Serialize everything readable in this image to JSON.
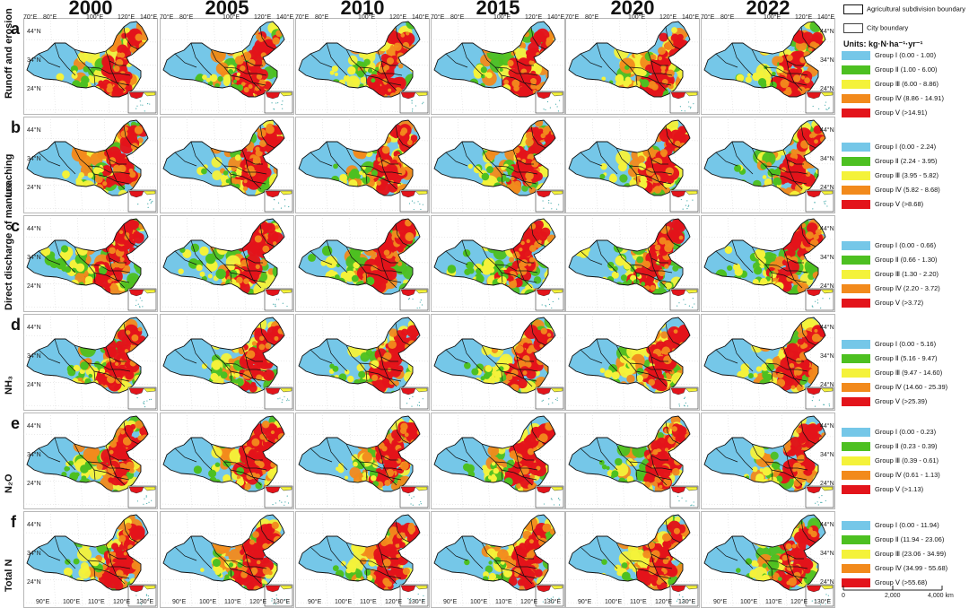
{
  "years": [
    "2000",
    "2005",
    "2010",
    "2015",
    "2020",
    "2022"
  ],
  "top_lon_ticks": [
    "70°E",
    "80°E",
    "100°E",
    "120°E",
    "140°E"
  ],
  "bottom_lon_ticks": [
    "90°E",
    "100°E",
    "110°E",
    "120°E",
    "130°E"
  ],
  "lat_ticks": [
    "44°N",
    "34°N",
    "24°N"
  ],
  "boundary_legend": {
    "agri": "Agricultural subdivision boundary",
    "city": "City boundary"
  },
  "units": "Units: kg·N·ha⁻¹·yr⁻¹",
  "colors": {
    "g1": "#75C7E8",
    "g2": "#4DC021",
    "g3": "#F4F23A",
    "g4": "#F28A1C",
    "g5": "#E3141B",
    "sea": "#ffffff",
    "boundary": "#111111"
  },
  "rows": [
    {
      "letter": "a",
      "label": "Runoff and erosion",
      "legend": [
        "Group Ⅰ (0.00 - 1.00)",
        "Group Ⅱ (1.00 - 6.00)",
        "Group Ⅲ (6.00 - 8.86)",
        "Group Ⅳ (8.86 - 14.91)",
        "Group Ⅴ (>14.91)"
      ]
    },
    {
      "letter": "b",
      "label": "Leaching",
      "legend": [
        "Group Ⅰ (0.00 - 2.24)",
        "Group Ⅱ (2.24 - 3.95)",
        "Group Ⅲ (3.95 - 5.82)",
        "Group Ⅳ (5.82 - 8.68)",
        "Group Ⅴ (>8.68)"
      ]
    },
    {
      "letter": "c",
      "label": "Direct discharge of manure",
      "legend": [
        "Group Ⅰ (0.00 - 0.66)",
        "Group Ⅱ (0.66 - 1.30)",
        "Group Ⅲ (1.30 - 2.20)",
        "Group Ⅳ (2.20 - 3.72)",
        "Group Ⅴ (>3.72)"
      ]
    },
    {
      "letter": "d",
      "label": "NH₃",
      "legend": [
        "Group Ⅰ (0.00 - 5.16)",
        "Group Ⅱ (5.16 - 9.47)",
        "Group Ⅲ (9.47 - 14.60)",
        "Group Ⅳ (14.60 - 25.39)",
        "Group Ⅴ (>25.39)"
      ]
    },
    {
      "letter": "e",
      "label": "N₂O",
      "legend": [
        "Group Ⅰ (0.00 - 0.23)",
        "Group Ⅱ (0.23 - 0.39)",
        "Group Ⅲ (0.39 - 0.61)",
        "Group Ⅳ (0.61 - 1.13)",
        "Group Ⅴ (>1.13)"
      ]
    },
    {
      "letter": "f",
      "label": "Total N",
      "legend": [
        "Group Ⅰ (0.00 - 11.94)",
        "Group Ⅱ (11.94 - 23.06)",
        "Group Ⅲ (23.06 - 34.99)",
        "Group Ⅳ (34.99 - 55.68)",
        "Group Ⅴ (>55.68)"
      ]
    }
  ],
  "scale": {
    "labels": [
      "0",
      "2,000",
      "4,000 km"
    ]
  }
}
